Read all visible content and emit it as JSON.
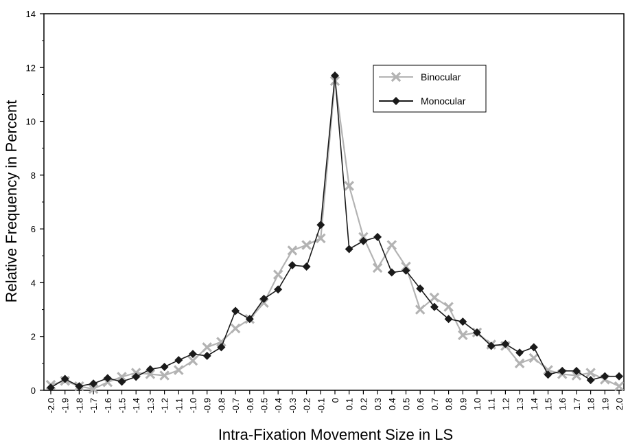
{
  "chart_data": {
    "type": "line",
    "xlabel": "Intra-Fixation Movement Size in LS",
    "ylabel": "Relative Frequency in Percent",
    "xlim": [
      -2.0,
      2.0
    ],
    "ylim": [
      0,
      14
    ],
    "x_tick_labels": [
      "-2.0",
      "-1.9",
      "-1.8",
      "-1.7",
      "-1.6",
      "-1.5",
      "-1.4",
      "-1.3",
      "-1.2",
      "-1.1",
      "-1.0",
      "-0.9",
      "-0.8",
      "-0.7",
      "-0.6",
      "-0.5",
      "-0.4",
      "-0.3",
      "-0.2",
      "-0.1",
      "0",
      "0.1",
      "0.2",
      "0.3",
      "0.4",
      "0.5",
      "0.6",
      "0.7",
      "0.8",
      "0.9",
      "1.0",
      "1.1",
      "1.2",
      "1.3",
      "1.4",
      "1.5",
      "1.6",
      "1.7",
      "1.8",
      "1.9",
      "2.0"
    ],
    "y_tick_labels": [
      "0",
      "2",
      "4",
      "6",
      "8",
      "10",
      "12",
      "14"
    ],
    "y_ticks": [
      0,
      2,
      4,
      6,
      8,
      10,
      12,
      14
    ],
    "grid": false,
    "legend_position": "top-right",
    "x": [
      -2.0,
      -1.9,
      -1.8,
      -1.7,
      -1.6,
      -1.5,
      -1.4,
      -1.3,
      -1.2,
      -1.1,
      -1.0,
      -0.9,
      -0.8,
      -0.7,
      -0.6,
      -0.5,
      -0.4,
      -0.3,
      -0.2,
      -0.1,
      0,
      0.1,
      0.2,
      0.3,
      0.4,
      0.5,
      0.6,
      0.7,
      0.8,
      0.9,
      1.0,
      1.1,
      1.2,
      1.3,
      1.4,
      1.5,
      1.6,
      1.7,
      1.8,
      1.9,
      2.0
    ],
    "series": [
      {
        "name": "Binocular",
        "color": "#b3b3b3",
        "marker": "x",
        "values": [
          0.2,
          0.35,
          0.15,
          0.05,
          0.3,
          0.5,
          0.65,
          0.6,
          0.55,
          0.75,
          1.1,
          1.6,
          1.8,
          2.3,
          2.65,
          3.25,
          4.3,
          5.2,
          5.4,
          5.65,
          11.5,
          7.6,
          5.7,
          4.55,
          5.4,
          4.6,
          3.0,
          3.45,
          3.1,
          2.05,
          2.15,
          1.7,
          1.65,
          1.0,
          1.2,
          0.75,
          0.6,
          0.55,
          0.65,
          0.4,
          0.15
        ]
      },
      {
        "name": "Monocular",
        "color": "#1a1a1a",
        "marker": "diamond",
        "values": [
          0.1,
          0.42,
          0.15,
          0.25,
          0.45,
          0.32,
          0.5,
          0.78,
          0.87,
          1.12,
          1.35,
          1.28,
          1.6,
          2.95,
          2.65,
          3.4,
          3.75,
          4.65,
          4.6,
          6.15,
          11.7,
          5.25,
          5.55,
          5.7,
          4.38,
          4.45,
          3.78,
          3.1,
          2.65,
          2.55,
          2.15,
          1.65,
          1.72,
          1.4,
          1.6,
          0.58,
          0.72,
          0.72,
          0.38,
          0.52,
          0.52
        ]
      }
    ]
  }
}
